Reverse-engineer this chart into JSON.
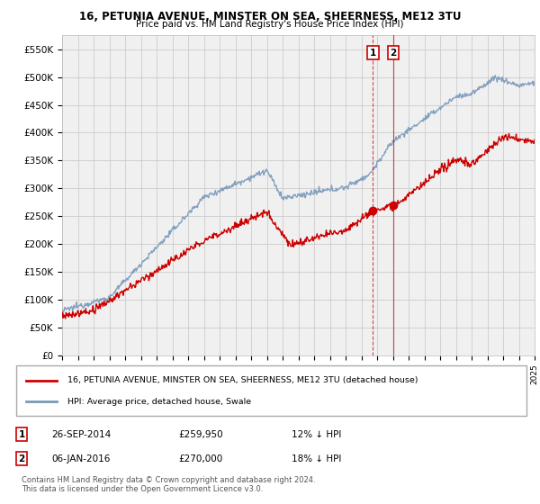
{
  "title": "16, PETUNIA AVENUE, MINSTER ON SEA, SHEERNESS, ME12 3TU",
  "subtitle": "Price paid vs. HM Land Registry's House Price Index (HPI)",
  "legend_line1": "16, PETUNIA AVENUE, MINSTER ON SEA, SHEERNESS, ME12 3TU (detached house)",
  "legend_line2": "HPI: Average price, detached house, Swale",
  "annotation1_date": "26-SEP-2014",
  "annotation1_price": "£259,950",
  "annotation1_hpi": "12% ↓ HPI",
  "annotation2_date": "06-JAN-2016",
  "annotation2_price": "£270,000",
  "annotation2_hpi": "18% ↓ HPI",
  "footer": "Contains HM Land Registry data © Crown copyright and database right 2024.\nThis data is licensed under the Open Government Licence v3.0.",
  "ylim": [
    0,
    575000
  ],
  "yticks": [
    0,
    50000,
    100000,
    150000,
    200000,
    250000,
    300000,
    350000,
    400000,
    450000,
    500000,
    550000
  ],
  "ytick_labels": [
    "£0",
    "£50K",
    "£100K",
    "£150K",
    "£200K",
    "£250K",
    "£300K",
    "£350K",
    "£400K",
    "£450K",
    "£500K",
    "£550K"
  ],
  "color_red": "#cc0000",
  "color_blue": "#7799bb",
  "color_vline1": "#cc0000",
  "color_vline2": "#cc4444",
  "background_plot": "#f0f0f0",
  "background_fig": "#ffffff",
  "grid_color": "#cccccc",
  "sale1_x": 2014.73,
  "sale1_y": 259950,
  "sale2_x": 2016.02,
  "sale2_y": 270000,
  "xmin": 1995,
  "xmax": 2025
}
